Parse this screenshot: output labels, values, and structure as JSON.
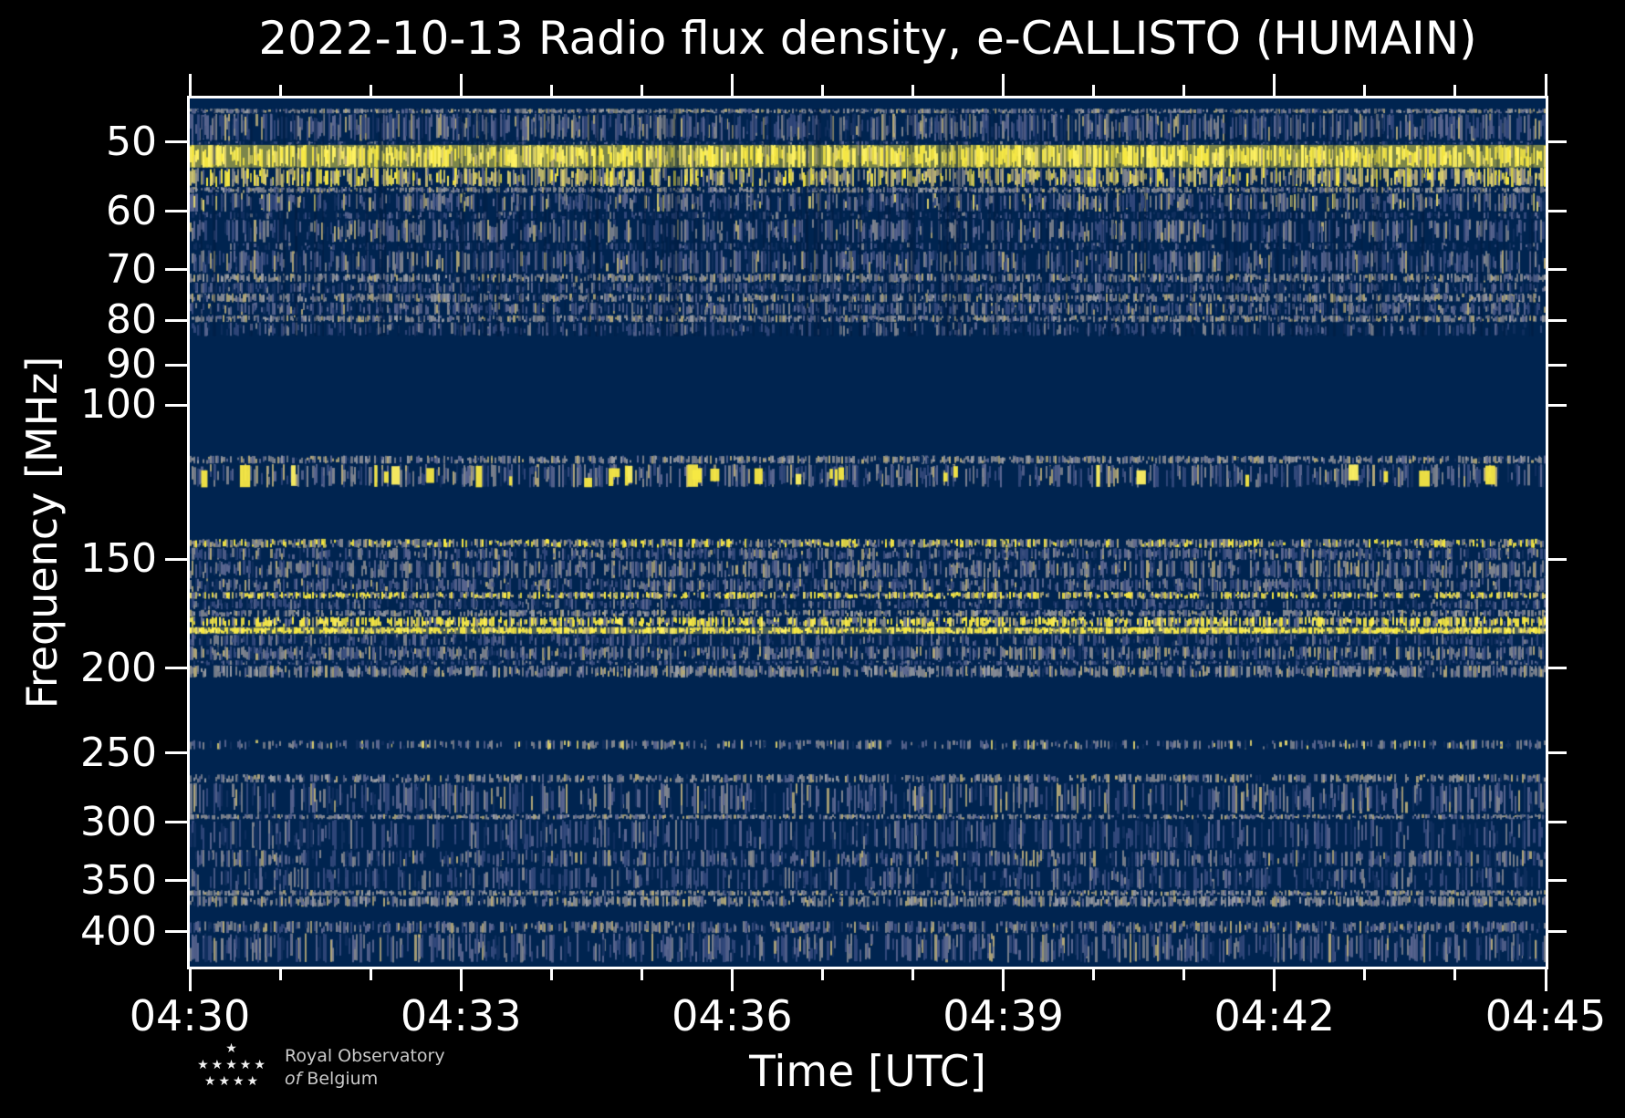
{
  "figure": {
    "title": "2022-10-13 Radio flux density, e-CALLISTO (HUMAIN)",
    "xlabel": "Time [UTC]",
    "ylabel": "Frequency [MHz]"
  },
  "branding": {
    "stars_row1": "★",
    "stars_row2": "★★★★★",
    "stars_row3": "★★★★",
    "org_line1": "Royal Observatory",
    "org_of": "of",
    "org_line2": "Belgium"
  },
  "chart_data": {
    "type": "heatmap",
    "subtype": "radio-dynamic-spectrum",
    "title": "2022-10-13 Radio flux density, e-CALLISTO (HUMAIN)",
    "date": "2022-10-13",
    "network": "e-CALLISTO",
    "station": "HUMAIN",
    "xlabel": "Time [UTC]",
    "ylabel": "Frequency [MHz]",
    "x_axis": {
      "total_minutes": 15,
      "major_ticks": [
        {
          "minute": 0,
          "label": "04:30"
        },
        {
          "minute": 3,
          "label": "04:33"
        },
        {
          "minute": 6,
          "label": "04:36"
        },
        {
          "minute": 9,
          "label": "04:39"
        },
        {
          "minute": 12,
          "label": "04:42"
        },
        {
          "minute": 15,
          "label": "04:45"
        }
      ],
      "minor_tick_minutes": [
        1,
        2,
        4,
        5,
        7,
        8,
        10,
        11,
        13,
        14
      ]
    },
    "y_axis": {
      "scale": "log",
      "unit": "MHz",
      "min_mhz": 44.6,
      "max_mhz": 438.7,
      "ticks": [
        50,
        60,
        70,
        80,
        90,
        100,
        150,
        200,
        250,
        300,
        350,
        400
      ],
      "direction": "increasing-downward"
    },
    "colormap": {
      "name": "cividis-like",
      "base": "#002450",
      "dark": "#001a3c",
      "dk2": "#11305f",
      "blue": "#33497c",
      "slate": "#5a6690",
      "gray": "#80858f",
      "ltgray": "#9a9ea6",
      "tan": "#b3a878",
      "pale": "#ddd06e",
      "yellow": "#f7e843",
      "bright": "#fff261"
    },
    "styles": {
      "gray": [
        [
          "gray",
          0.4
        ],
        [
          "slate",
          0.2
        ],
        [
          "tan",
          0.15
        ],
        [
          "ltgray",
          0.15
        ],
        [
          "dk2",
          0.1
        ]
      ],
      "graymix": [
        [
          "gray",
          0.35
        ],
        [
          "slate",
          0.25
        ],
        [
          "blue",
          0.2
        ],
        [
          "tan",
          0.1
        ],
        [
          "dk2",
          0.1
        ]
      ],
      "bluegray": [
        [
          "blue",
          0.3
        ],
        [
          "slate",
          0.3
        ],
        [
          "gray",
          0.2
        ],
        [
          "dk2",
          0.12
        ],
        [
          "tan",
          0.08
        ]
      ],
      "bluegray_y": [
        [
          "blue",
          0.28
        ],
        [
          "slate",
          0.27
        ],
        [
          "gray",
          0.2
        ],
        [
          "dk2",
          0.1
        ],
        [
          "tan",
          0.08
        ],
        [
          "pale",
          0.07
        ]
      ],
      "blue": [
        [
          "blue",
          0.4
        ],
        [
          "dk2",
          0.25
        ],
        [
          "slate",
          0.22
        ],
        [
          "gray",
          0.13
        ]
      ],
      "darkrow": [
        [
          "dk2",
          0.45
        ],
        [
          "blue",
          0.3
        ],
        [
          "slate",
          0.15
        ],
        [
          "gray",
          0.1
        ]
      ],
      "yellowcore": [
        [
          "bright",
          0.45
        ],
        [
          "yellow",
          0.4
        ],
        [
          "pale",
          0.1
        ],
        [
          "tan",
          0.05
        ]
      ],
      "paleyellow": [
        [
          "pale",
          0.35
        ],
        [
          "tan",
          0.2
        ],
        [
          "yellow",
          0.2
        ],
        [
          "gray",
          0.15
        ],
        [
          "slate",
          0.1
        ]
      ],
      "yellowmix": [
        [
          "yellow",
          0.4
        ],
        [
          "pale",
          0.15
        ],
        [
          "tan",
          0.15
        ],
        [
          "gray",
          0.15
        ],
        [
          "slate",
          0.15
        ]
      ],
      "yellowmix2": [
        [
          "yellow",
          0.5
        ],
        [
          "bright",
          0.1
        ],
        [
          "tan",
          0.12
        ],
        [
          "gray",
          0.15
        ],
        [
          "slate",
          0.13
        ]
      ],
      "yellowdense": [
        [
          "yellow",
          0.6
        ],
        [
          "bright",
          0.2
        ],
        [
          "pale",
          0.1
        ],
        [
          "tan",
          0.1
        ]
      ],
      "grayyellow": [
        [
          "gray",
          0.3
        ],
        [
          "tan",
          0.15
        ],
        [
          "yellow",
          0.3
        ],
        [
          "slate",
          0.15
        ],
        [
          "dk2",
          0.1
        ]
      ],
      "graysparse": [
        [
          "gray",
          0.4
        ],
        [
          "slate",
          0.3
        ],
        [
          "dk2",
          0.2
        ],
        [
          "pale",
          0.1
        ]
      ]
    },
    "bands": [
      {
        "f": [
          45.8,
          46.4
        ],
        "style": "gray",
        "density": 0.92
      },
      {
        "f": [
          46.4,
          49.9
        ],
        "style": "bluegray",
        "density": 0.78
      },
      {
        "f": [
          49.9,
          50.4
        ],
        "style": "darkrow",
        "density": 0.45
      },
      {
        "f": [
          50.4,
          53.5
        ],
        "style": "yellowcore",
        "density": 1.0,
        "base": [
          "yellow",
          0.5
        ]
      },
      {
        "f": [
          53.5,
          56.3
        ],
        "style": "paleyellow",
        "density": 0.85
      },
      {
        "f": [
          56.3,
          57.2
        ],
        "style": "gray",
        "density": 0.9
      },
      {
        "f": [
          57.2,
          60.1
        ],
        "style": "bluegray_y",
        "density": 0.72
      },
      {
        "f": [
          60.1,
          61.3
        ],
        "style": "darkrow",
        "density": 0.4
      },
      {
        "f": [
          61.3,
          65.2
        ],
        "style": "bluegray",
        "density": 0.7
      },
      {
        "f": [
          65.2,
          66.5
        ],
        "style": "darkrow",
        "density": 0.45
      },
      {
        "f": [
          66.5,
          70.7
        ],
        "style": "bluegray",
        "density": 0.7
      },
      {
        "f": [
          70.7,
          72.4
        ],
        "style": "gray",
        "density": 0.85
      },
      {
        "f": [
          72.4,
          74.5
        ],
        "style": "blue",
        "density": 0.6
      },
      {
        "f": [
          74.5,
          76.3
        ],
        "style": "gray",
        "density": 0.85
      },
      {
        "f": [
          76.3,
          78.9
        ],
        "style": "bluegray",
        "density": 0.7
      },
      {
        "f": [
          78.9,
          80.4
        ],
        "style": "gray",
        "density": 0.88
      },
      {
        "f": [
          80.4,
          83.4
        ],
        "style": "blue",
        "density": 0.5
      },
      {
        "f": [
          45.8,
          83.4
        ],
        "style": null,
        "density": 0,
        "streaks": 150
      },
      {
        "f": [
          114.2,
          116.7
        ],
        "style": "gray",
        "density": 0.8
      },
      {
        "f": [
          116.7,
          124.2
        ],
        "style": "bluegray",
        "density": 0.62,
        "blobs": 32
      },
      {
        "f": [
          142.2,
          145.6
        ],
        "style": "grayyellow",
        "density": 0.9
      },
      {
        "f": [
          145.6,
          150.4
        ],
        "style": "bluegray",
        "density": 0.7
      },
      {
        "f": [
          150.4,
          157.8
        ],
        "style": "graymix",
        "density": 0.8
      },
      {
        "f": [
          157.8,
          163.5
        ],
        "style": "bluegray",
        "density": 0.72
      },
      {
        "f": [
          163.5,
          166.6
        ],
        "style": "yellowmix",
        "density": 0.85
      },
      {
        "f": [
          166.6,
          171.4
        ],
        "style": "blue",
        "density": 0.6
      },
      {
        "f": [
          171.4,
          174.6
        ],
        "style": "gray",
        "density": 0.75
      },
      {
        "f": [
          174.6,
          179.4
        ],
        "style": "yellowmix2",
        "density": 0.92
      },
      {
        "f": [
          179.4,
          182.7
        ],
        "style": "yellowdense",
        "density": 1.0,
        "base": [
          "pale",
          0.35
        ]
      },
      {
        "f": [
          182.7,
          188.6
        ],
        "style": "blue",
        "density": 0.55
      },
      {
        "f": [
          188.6,
          195.8
        ],
        "style": "graymix",
        "density": 0.78
      },
      {
        "f": [
          195.8,
          198.4
        ],
        "style": "blue",
        "density": 0.5
      },
      {
        "f": [
          198.4,
          204.9
        ],
        "style": "gray",
        "density": 0.85
      },
      {
        "f": [
          241.5,
          247.6
        ],
        "style": "graysparse",
        "density": 0.5
      },
      {
        "f": [
          264.2,
          270.3
        ],
        "style": "gray",
        "density": 0.65
      },
      {
        "f": [
          270.3,
          293.6
        ],
        "style": "bluegray",
        "density": 0.58
      },
      {
        "f": [
          293.6,
          297.7
        ],
        "style": "gray",
        "density": 0.8
      },
      {
        "f": [
          297.7,
          322.6
        ],
        "style": "blue",
        "density": 0.5
      },
      {
        "f": [
          322.6,
          337.6
        ],
        "style": "bluegray",
        "density": 0.65
      },
      {
        "f": [
          337.6,
          358.6
        ],
        "style": "blue",
        "density": 0.5
      },
      {
        "f": [
          358.6,
          364.2
        ],
        "style": "gray",
        "density": 0.85
      },
      {
        "f": [
          364.2,
          374.9
        ],
        "style": "gray",
        "density": 0.82
      },
      {
        "f": [
          389.0,
          401.8
        ],
        "style": "graymix",
        "density": 0.68
      },
      {
        "f": [
          401.8,
          434.0
        ],
        "style": "bluegray",
        "density": 0.6
      }
    ]
  }
}
